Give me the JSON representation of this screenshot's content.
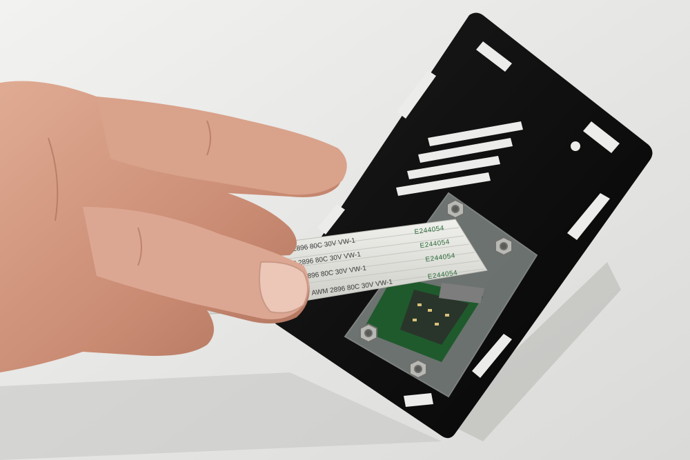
{
  "cable": {
    "rows": [
      {
        "code": "E244054",
        "spec": "AWM  2896  80C  30V  VW-1"
      },
      {
        "code": "E244054",
        "spec": "AWM  2896  80C  30V  VW-1"
      },
      {
        "code": "E244054",
        "spec": "AWM  2896  80C  30V  VW-1"
      },
      {
        "code": "E244054",
        "spec": "AWM  2896  80C  30V  VW-1"
      }
    ]
  },
  "colors": {
    "background": "#e9e9e7",
    "plate": "#111111",
    "pcb": "#1f5a2c",
    "acrylic": "#c9d4d0",
    "cable": "#e4e4e0",
    "cable_print": "#2a6e3a",
    "skin": "#d29a82"
  }
}
